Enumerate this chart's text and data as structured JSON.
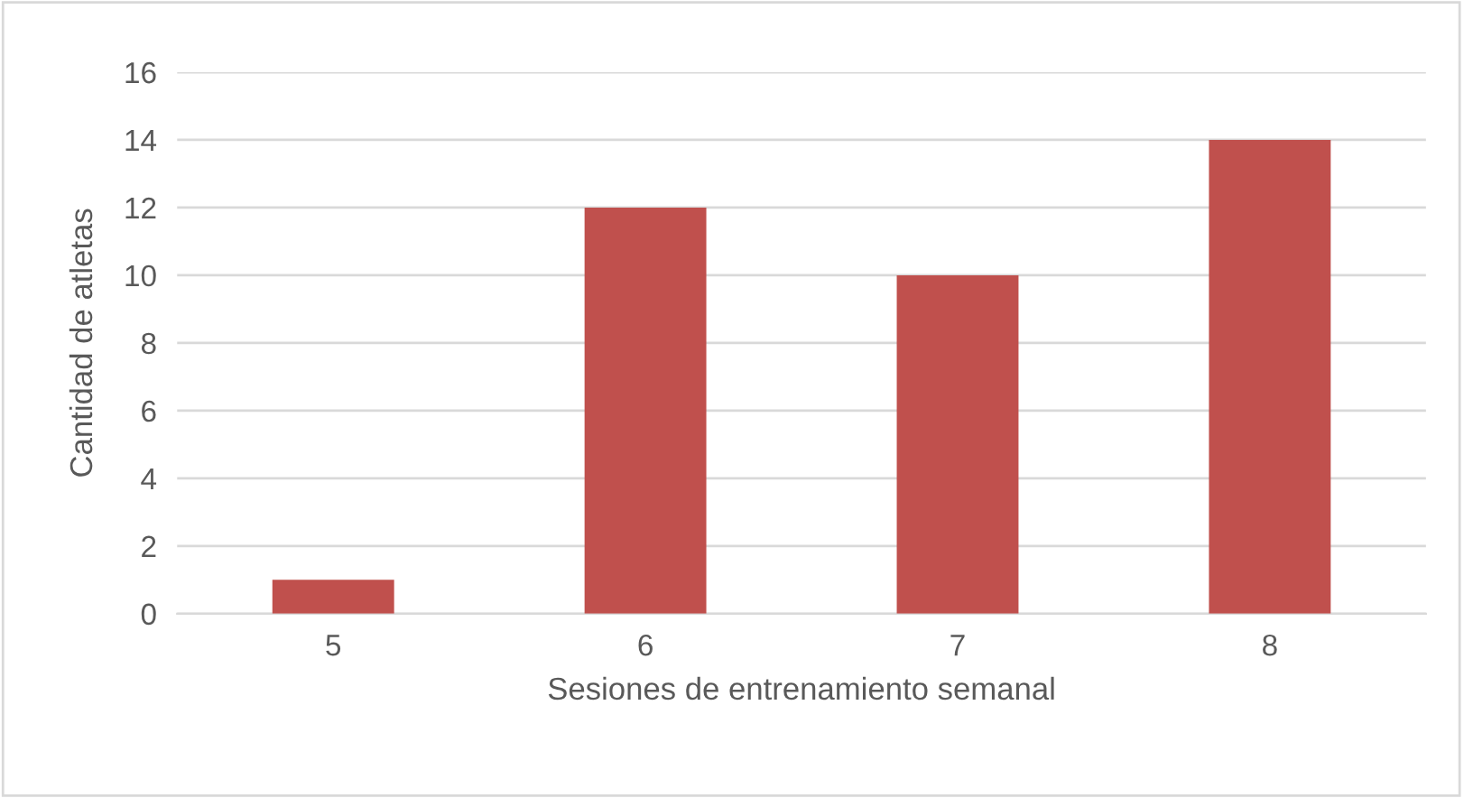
{
  "chart_data": {
    "type": "bar",
    "xlabel": "Sesiones de entrenamiento semanal",
    "ylabel": "Cantidad de atletas",
    "categories": [
      "5",
      "6",
      "7",
      "8"
    ],
    "values": [
      1,
      12,
      10,
      14
    ],
    "color": "#c0504d",
    "ylim": [
      0,
      16
    ],
    "yticks": [
      0,
      2,
      4,
      6,
      8,
      10,
      12,
      14,
      16
    ],
    "grid": "y",
    "legend": false
  }
}
